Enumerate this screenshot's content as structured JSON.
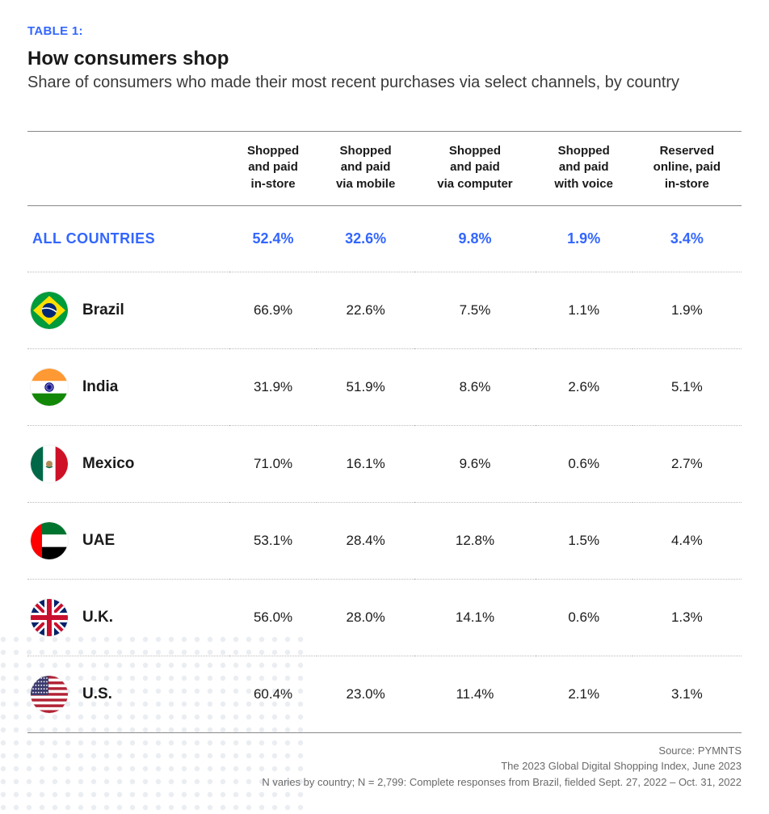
{
  "table_label": "TABLE 1:",
  "title": "How consumers shop",
  "subtitle": "Share of consumers who made their most recent purchases via select channels, by country",
  "colors": {
    "accent": "#3366ff",
    "text": "#1a1a1a",
    "muted": "#6a6a6a",
    "rule": "#888888",
    "dotted": "#bbbbbb",
    "background": "#ffffff",
    "dot_pattern": "#d9e0e6"
  },
  "typography": {
    "table_label_size_pt": 11,
    "title_size_pt": 18,
    "subtitle_size_pt": 15,
    "header_size_pt": 11,
    "cell_size_pt": 13,
    "rowlabel_size_pt": 14,
    "footnote_size_pt": 10
  },
  "columns": [
    "Shopped\nand paid\nin-store",
    "Shopped\nand paid\nvia mobile",
    "Shopped\nand paid\nvia computer",
    "Shopped\nand paid\nwith voice",
    "Reserved\nonline, paid\nin-store"
  ],
  "summary": {
    "label": "ALL COUNTRIES",
    "values": [
      "52.4%",
      "32.6%",
      "9.8%",
      "1.9%",
      "3.4%"
    ]
  },
  "rows": [
    {
      "country": "Brazil",
      "flag": "brazil",
      "values": [
        "66.9%",
        "22.6%",
        "7.5%",
        "1.1%",
        "1.9%"
      ]
    },
    {
      "country": "India",
      "flag": "india",
      "values": [
        "31.9%",
        "51.9%",
        "8.6%",
        "2.6%",
        "5.1%"
      ]
    },
    {
      "country": "Mexico",
      "flag": "mexico",
      "values": [
        "71.0%",
        "16.1%",
        "9.6%",
        "0.6%",
        "2.7%"
      ]
    },
    {
      "country": "UAE",
      "flag": "uae",
      "values": [
        "53.1%",
        "28.4%",
        "12.8%",
        "1.5%",
        "4.4%"
      ]
    },
    {
      "country": "U.K.",
      "flag": "uk",
      "values": [
        "56.0%",
        "28.0%",
        "14.1%",
        "0.6%",
        "1.3%"
      ]
    },
    {
      "country": "U.S.",
      "flag": "us",
      "values": [
        "60.4%",
        "23.0%",
        "11.4%",
        "2.1%",
        "3.1%"
      ]
    }
  ],
  "footnotes": [
    "Source: PYMNTS",
    "The 2023 Global Digital Shopping Index, June 2023",
    "N varies by country; N = 2,799: Complete responses from Brazil, fielded Sept. 27, 2022 – Oct. 31, 2022"
  ]
}
